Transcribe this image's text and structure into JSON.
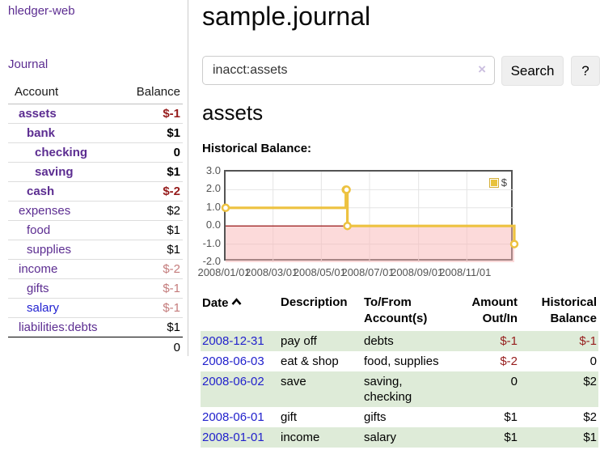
{
  "app": {
    "brand": "hledger-web"
  },
  "sidebar": {
    "nav_journal": "Journal",
    "accounts": {
      "col_account": "Account",
      "col_balance": "Balance",
      "rows": [
        {
          "name": "assets",
          "balance": "$-1",
          "indent": 1,
          "bold": true,
          "name_color": "purple",
          "balance_style": "neg-strong"
        },
        {
          "name": "bank",
          "balance": "$1",
          "indent": 2,
          "bold": true,
          "name_color": "purple",
          "balance_style": "normal"
        },
        {
          "name": "checking",
          "balance": "0",
          "indent": 3,
          "bold": true,
          "name_color": "purple",
          "balance_style": "normal"
        },
        {
          "name": "saving",
          "balance": "$1",
          "indent": 3,
          "bold": true,
          "name_color": "purple",
          "balance_style": "normal"
        },
        {
          "name": "cash",
          "balance": "$-2",
          "indent": 2,
          "bold": true,
          "name_color": "purple",
          "balance_style": "neg-strong"
        },
        {
          "name": "expenses",
          "balance": "$2",
          "indent": 1,
          "bold": false,
          "name_color": "purple",
          "balance_style": "normal"
        },
        {
          "name": "food",
          "balance": "$1",
          "indent": 2,
          "bold": false,
          "name_color": "purple",
          "balance_style": "normal"
        },
        {
          "name": "supplies",
          "balance": "$1",
          "indent": 2,
          "bold": false,
          "name_color": "purple",
          "balance_style": "normal"
        },
        {
          "name": "income",
          "balance": "$-2",
          "indent": 1,
          "bold": false,
          "name_color": "purple",
          "balance_style": "neg-soft"
        },
        {
          "name": "gifts",
          "balance": "$-1",
          "indent": 2,
          "bold": false,
          "name_color": "purple",
          "balance_style": "neg-soft"
        },
        {
          "name": "salary",
          "balance": "$-1",
          "indent": 2,
          "bold": false,
          "name_color": "blue",
          "balance_style": "neg-soft"
        },
        {
          "name": "liabilities:debts",
          "balance": "$1",
          "indent": 1,
          "bold": false,
          "name_color": "purple",
          "balance_style": "normal"
        }
      ],
      "total": "0"
    }
  },
  "main": {
    "title": "sample.journal",
    "search": {
      "value": "inacct:assets",
      "clear_icon": "×",
      "search_label": "Search",
      "help_label": "?"
    },
    "heading": "assets",
    "chart_title": "Historical Balance:"
  },
  "chart_data": {
    "type": "line",
    "title": "Historical Balance",
    "legend": {
      "label": "$",
      "position": "top-right"
    },
    "x_ticks": [
      "2008/01/01",
      "2008/03/01",
      "2008/05/01",
      "2008/07/01",
      "2008/09/01",
      "2008/11/01"
    ],
    "y_ticks": [
      3.0,
      2.0,
      1.0,
      0.0,
      -1.0,
      -2.0
    ],
    "ylim": [
      -2,
      3
    ],
    "xlim": [
      "2008-01-01",
      "2008-12-31"
    ],
    "grid": true,
    "steps": true,
    "series": [
      {
        "name": "$",
        "color": "#edc240",
        "points": [
          {
            "x": "2008-01-01",
            "y": 1
          },
          {
            "x": "2008-06-01",
            "y": 2
          },
          {
            "x": "2008-06-02",
            "y": 2
          },
          {
            "x": "2008-06-03",
            "y": 0
          },
          {
            "x": "2008-12-31",
            "y": -1
          }
        ]
      }
    ],
    "colors": {
      "negative_fill": "rgba(249,181,181,0.5)",
      "zero_line": "#8b0000",
      "grid": "#e4e4e4",
      "border": "#545454",
      "tick_text": "#545454"
    }
  },
  "register": {
    "headers": {
      "date": "Date",
      "sort_icon": "chevron-up",
      "description": "Description",
      "accounts": "To/From Account(s)",
      "amount": "Amount Out/In",
      "balance": "Historical Balance"
    },
    "rows": [
      {
        "date": "2008-12-31",
        "description": "pay off",
        "accounts": "debts",
        "amount": "$-1",
        "amount_negative": true,
        "balance": "$-1",
        "balance_negative": true
      },
      {
        "date": "2008-06-03",
        "description": "eat & shop",
        "accounts": "food, supplies",
        "amount": "$-2",
        "amount_negative": true,
        "balance": "0",
        "balance_negative": false
      },
      {
        "date": "2008-06-02",
        "description": "save",
        "accounts": "saving, checking",
        "amount": "0",
        "amount_negative": false,
        "balance": "$2",
        "balance_negative": false
      },
      {
        "date": "2008-06-01",
        "description": "gift",
        "accounts": "gifts",
        "amount": "$1",
        "amount_negative": false,
        "balance": "$2",
        "balance_negative": false
      },
      {
        "date": "2008-01-01",
        "description": "income",
        "accounts": "salary",
        "amount": "$1",
        "amount_negative": false,
        "balance": "$1",
        "balance_negative": false
      }
    ]
  }
}
